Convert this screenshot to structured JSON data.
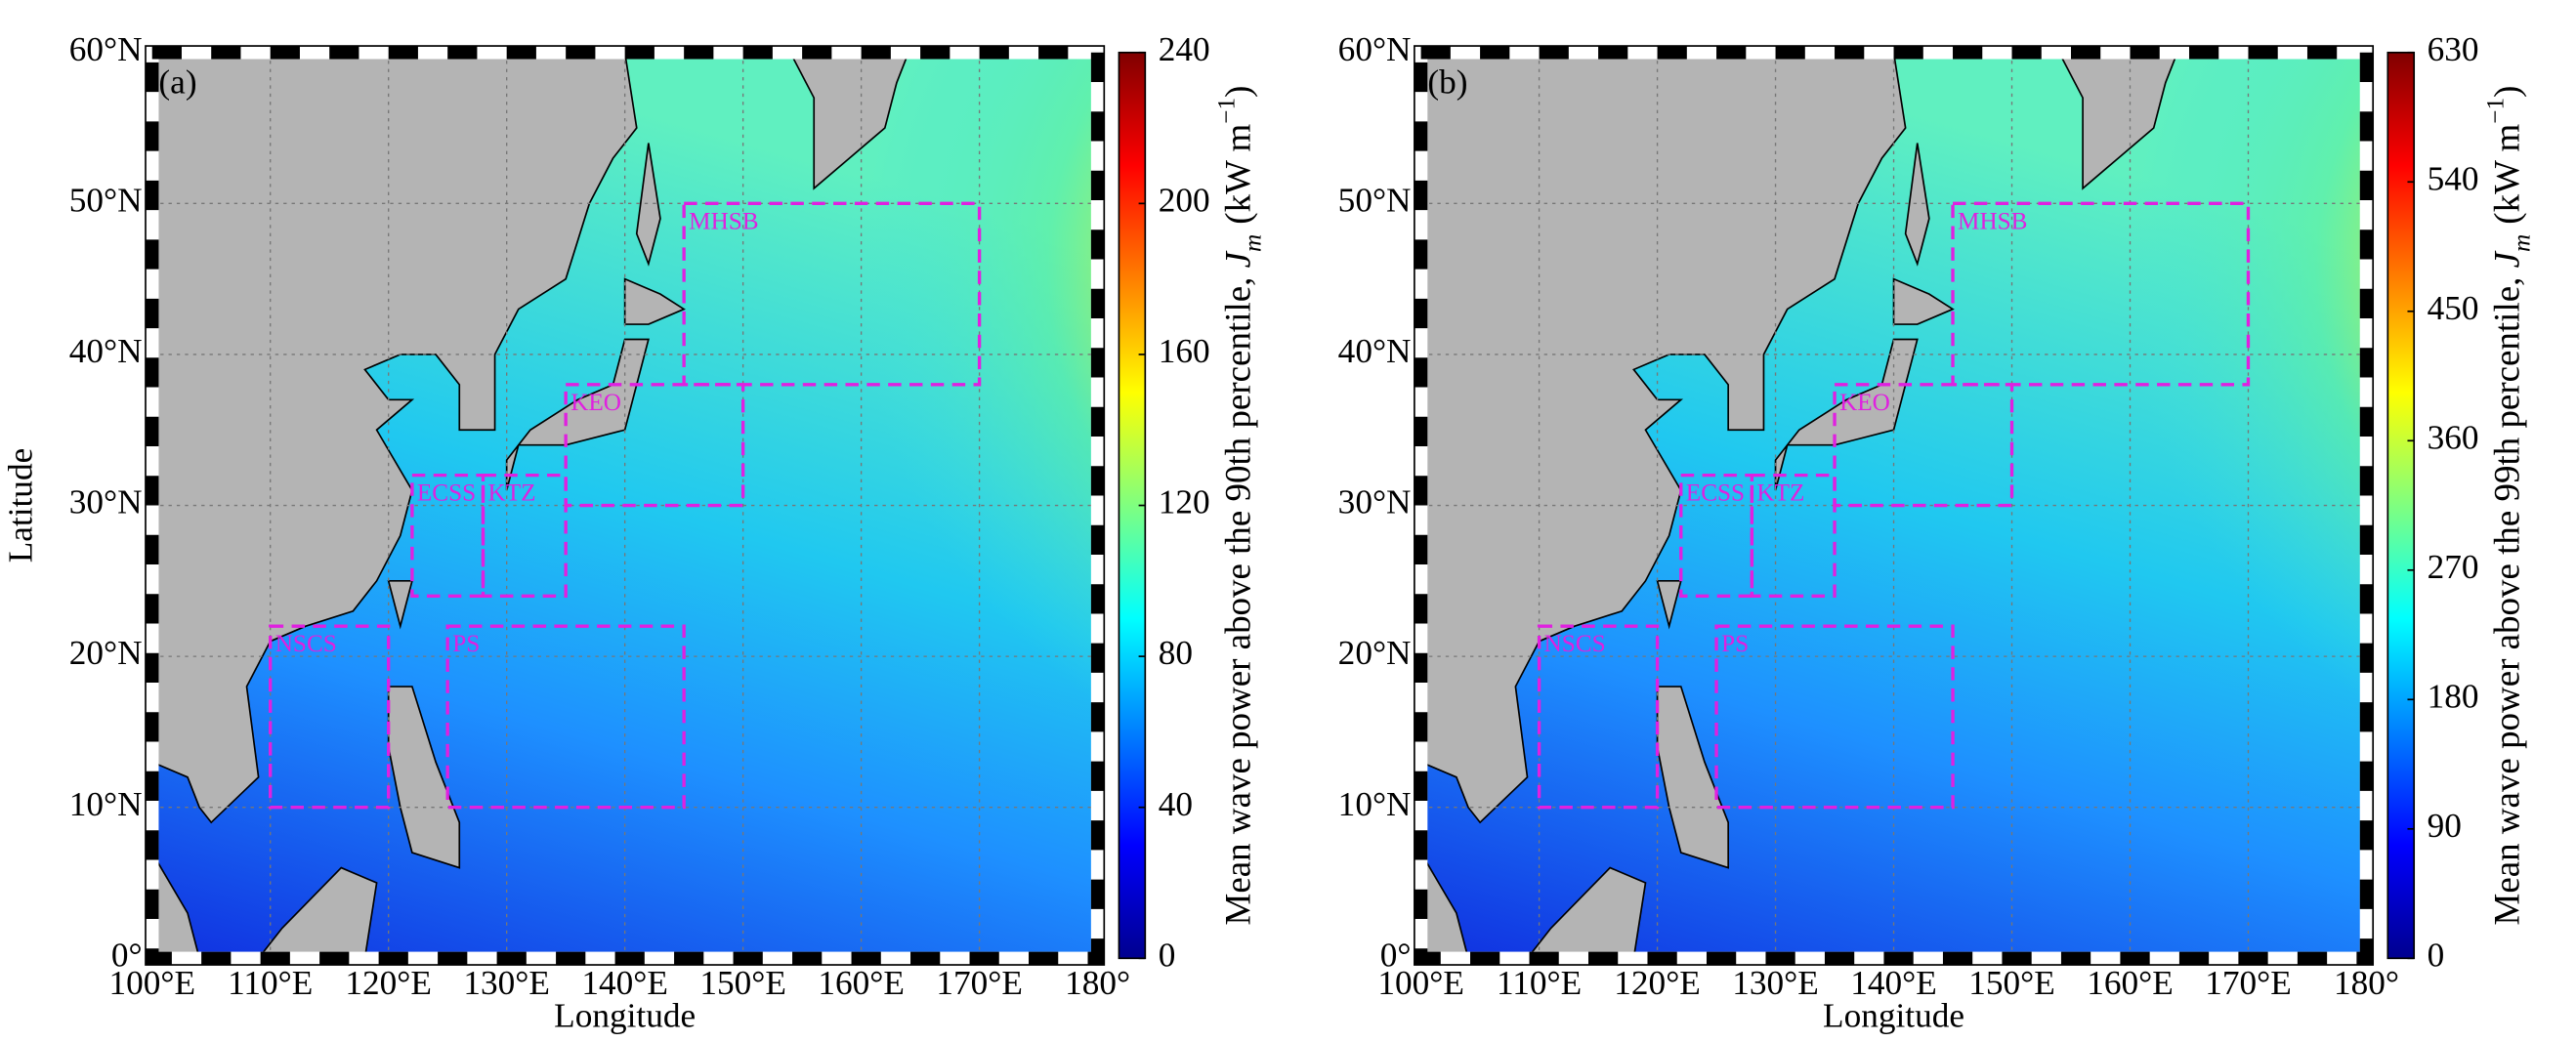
{
  "panels": [
    {
      "label": "(a)",
      "colorbar": {
        "range": [
          0,
          240
        ],
        "ticks": [
          0,
          40,
          80,
          120,
          160,
          200,
          240
        ],
        "title": "Mean wave power above the 90th percentile, ",
        "symbol": "J",
        "subscript": "m",
        "unit": "(kW m",
        "unit_exp": "−1",
        "unit_close": ")"
      }
    },
    {
      "label": "(b)",
      "colorbar": {
        "range": [
          0,
          630
        ],
        "ticks": [
          0,
          90,
          180,
          270,
          360,
          450,
          540,
          630
        ],
        "title": "Mean wave power above the 99th percentile, ",
        "symbol": "J",
        "subscript": "m",
        "unit": "(kW m",
        "unit_exp": "−1",
        "unit_close": ")"
      }
    }
  ],
  "xaxis": {
    "title": "Longitude",
    "ticks": [
      {
        "value": 100,
        "label": "100°E"
      },
      {
        "value": 110,
        "label": "110°E"
      },
      {
        "value": 120,
        "label": "120°E"
      },
      {
        "value": 130,
        "label": "130°E"
      },
      {
        "value": 140,
        "label": "140°E"
      },
      {
        "value": 150,
        "label": "150°E"
      },
      {
        "value": 160,
        "label": "160°E"
      },
      {
        "value": 170,
        "label": "170°E"
      },
      {
        "value": 180,
        "label": "180°"
      }
    ]
  },
  "yaxis": {
    "title": "Latitude",
    "ticks": [
      {
        "value": 0,
        "label": "0°"
      },
      {
        "value": 10,
        "label": "10°N"
      },
      {
        "value": 20,
        "label": "20°N"
      },
      {
        "value": 30,
        "label": "30°N"
      },
      {
        "value": 40,
        "label": "40°N"
      },
      {
        "value": 50,
        "label": "50°N"
      },
      {
        "value": 60,
        "label": "60°N"
      }
    ]
  },
  "regions": [
    "MHSB",
    "KEO",
    "ECSS",
    "KTZ",
    "PS",
    "NSCS"
  ]
}
